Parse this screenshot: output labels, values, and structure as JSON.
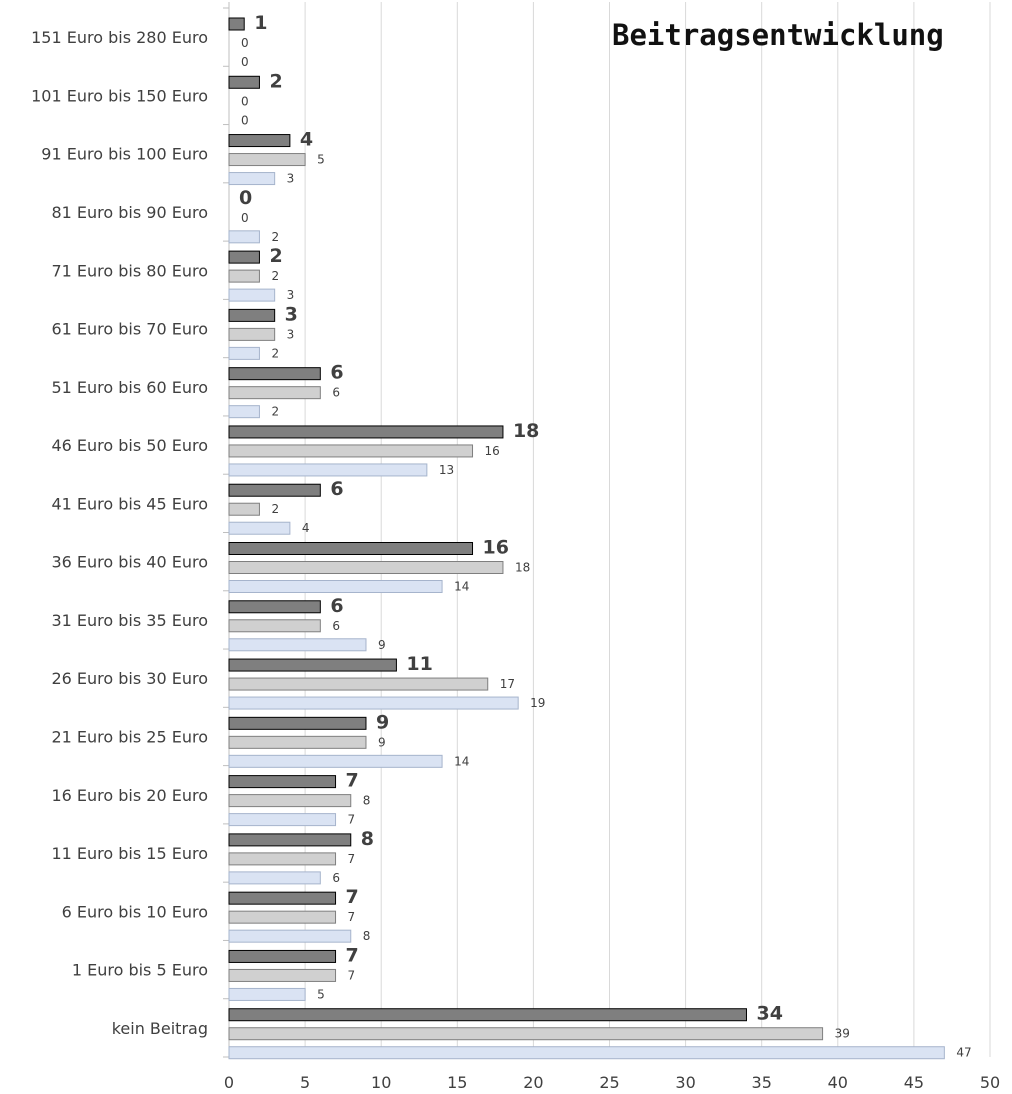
{
  "chart_data": {
    "type": "bar",
    "orientation": "horizontal",
    "title": "Beitragsentwicklung",
    "categories": [
      "151 Euro bis 280 Euro",
      "101 Euro bis 150 Euro",
      "91 Euro bis 100 Euro",
      "81 Euro bis 90 Euro",
      "71 Euro bis 80 Euro",
      "61 Euro bis 70 Euro",
      "51 Euro bis 60 Euro",
      "46 Euro bis 50 Euro",
      "41 Euro bis 45 Euro",
      "36 Euro bis 40 Euro",
      "31 Euro bis 35 Euro",
      "26 Euro bis 30 Euro",
      "21 Euro bis 25 Euro",
      "16 Euro bis 20 Euro",
      "11 Euro bis 15 Euro",
      "6 Euro bis 10 Euro",
      "1 Euro bis 5 Euro",
      "kein Beitrag"
    ],
    "series": [
      {
        "color": "#7f7f7f",
        "values": [
          1,
          2,
          4,
          0,
          2,
          3,
          6,
          18,
          6,
          16,
          6,
          11,
          9,
          7,
          8,
          7,
          7,
          34
        ]
      },
      {
        "color": "#d0d0d0",
        "values": [
          0,
          0,
          5,
          0,
          2,
          3,
          6,
          16,
          2,
          18,
          6,
          17,
          9,
          8,
          7,
          7,
          7,
          39
        ]
      },
      {
        "color": "#dae3f3",
        "values": [
          0,
          0,
          3,
          2,
          3,
          2,
          2,
          13,
          4,
          14,
          9,
          19,
          14,
          7,
          6,
          8,
          5,
          47
        ]
      }
    ],
    "xlim": [
      0,
      50
    ],
    "xticks": [
      0,
      5,
      10,
      15,
      20,
      25,
      30,
      35,
      40,
      45,
      50
    ],
    "grid": true,
    "xlabel": "",
    "ylabel": ""
  }
}
